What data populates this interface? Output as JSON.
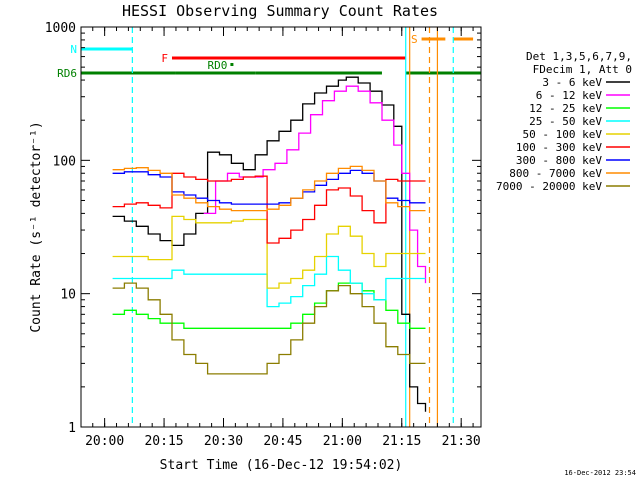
{
  "chart_data": {
    "type": "line",
    "title": "HESSI Observing Summary Count Rates",
    "xlabel": "Start Time (16-Dec-12 19:54:02)",
    "ylabel": "Count Rate (s⁻¹ detector⁻¹)",
    "y_scale": "log",
    "ylim": [
      1,
      1000
    ],
    "xlim": [
      "19:54:02",
      "21:35:00"
    ],
    "x_ticks": [
      "20:00",
      "20:15",
      "20:30",
      "20:45",
      "21:00",
      "21:15",
      "21:30"
    ],
    "y_ticks": [
      "1",
      "10",
      "100",
      "1000"
    ],
    "legend_header": [
      "Det 1,3,5,6,7,9,",
      "FDecim 1, Att 0"
    ],
    "legend_placement": "right",
    "series": [
      {
        "name": "3 - 6 keV",
        "color": "#000000",
        "x": [
          "20:02",
          "20:05",
          "20:08",
          "20:11",
          "20:14",
          "20:17",
          "20:20",
          "20:23",
          "20:26",
          "20:29",
          "20:32",
          "20:35",
          "20:38",
          "20:41",
          "20:44",
          "20:47",
          "20:50",
          "20:53",
          "20:56",
          "20:59",
          "21:01",
          "21:04",
          "21:07",
          "21:10",
          "21:13",
          "21:15",
          "21:17",
          "21:19",
          "21:21"
        ],
        "values": [
          38,
          35,
          32,
          28,
          25,
          23,
          28,
          40,
          115,
          110,
          95,
          85,
          110,
          140,
          165,
          200,
          265,
          320,
          360,
          400,
          420,
          380,
          330,
          260,
          180,
          7,
          2,
          1.5,
          1.3
        ]
      },
      {
        "name": "6 - 12 keV",
        "color": "#ff00ff",
        "x": [
          "20:25",
          "20:28",
          "20:31",
          "20:34",
          "20:37",
          "20:40",
          "20:43",
          "20:46",
          "20:49",
          "20:52",
          "20:55",
          "20:58",
          "21:01",
          "21:04",
          "21:07",
          "21:10",
          "21:13",
          "21:15",
          "21:17",
          "21:19",
          "21:21"
        ],
        "values": [
          40,
          70,
          80,
          75,
          75,
          85,
          95,
          120,
          160,
          220,
          280,
          330,
          360,
          330,
          270,
          200,
          130,
          80,
          30,
          16,
          12
        ]
      },
      {
        "name": "12 - 25 keV",
        "color": "#00ff00",
        "x": [
          "20:02",
          "20:05",
          "20:08",
          "20:11",
          "20:14",
          "20:17",
          "20:20",
          "20:23",
          "20:26",
          "20:29",
          "20:32",
          "20:35",
          "20:38",
          "20:41",
          "20:44",
          "20:47",
          "20:50",
          "20:53",
          "20:56",
          "20:59",
          "21:02",
          "21:05",
          "21:08",
          "21:11",
          "21:14",
          "21:17",
          "21:20",
          "21:21"
        ],
        "values": [
          7,
          7.5,
          7,
          6.5,
          6,
          6,
          5.5,
          5.5,
          5.5,
          5.5,
          5.5,
          5.5,
          5.5,
          5.5,
          5.5,
          6,
          7,
          8.5,
          10.5,
          12,
          12,
          10.5,
          9,
          7.5,
          6,
          5.5,
          5.5,
          5.5
        ]
      },
      {
        "name": "25 - 50 keV",
        "color": "#00ffff",
        "x": [
          "20:02",
          "20:05",
          "20:08",
          "20:11",
          "20:14",
          "20:17",
          "20:20",
          "20:23",
          "20:26",
          "20:29",
          "20:32",
          "20:35",
          "20:38",
          "20:41",
          "20:44",
          "20:47",
          "20:50",
          "20:53",
          "20:56",
          "20:59",
          "21:02",
          "21:05",
          "21:08",
          "21:11",
          "21:14",
          "21:17",
          "21:20",
          "21:21"
        ],
        "values": [
          13,
          13,
          13,
          13,
          13,
          15,
          14,
          14,
          14,
          14,
          14,
          14,
          14,
          8,
          8.5,
          9.5,
          11.5,
          14,
          19,
          15,
          12,
          10,
          9,
          13,
          13,
          13,
          13,
          13
        ]
      },
      {
        "name": "50 - 100 keV",
        "color": "#e6d200",
        "x": [
          "20:02",
          "20:05",
          "20:08",
          "20:11",
          "20:14",
          "20:17",
          "20:20",
          "20:23",
          "20:26",
          "20:29",
          "20:32",
          "20:35",
          "20:38",
          "20:41",
          "20:44",
          "20:47",
          "20:50",
          "20:53",
          "20:56",
          "20:59",
          "21:02",
          "21:05",
          "21:08",
          "21:11",
          "21:14",
          "21:17",
          "21:20",
          "21:21"
        ],
        "values": [
          19,
          19,
          19,
          18,
          18,
          38,
          36,
          34,
          34,
          34,
          35,
          36,
          36,
          11,
          12,
          13,
          15,
          19,
          28,
          32,
          27,
          20,
          16,
          20,
          20,
          20,
          20,
          20
        ]
      },
      {
        "name": "100 - 300 keV",
        "color": "#ff0000",
        "x": [
          "20:02",
          "20:05",
          "20:08",
          "20:11",
          "20:14",
          "20:17",
          "20:20",
          "20:23",
          "20:26",
          "20:29",
          "20:32",
          "20:35",
          "20:38",
          "20:41",
          "20:44",
          "20:47",
          "20:50",
          "20:53",
          "20:56",
          "20:59",
          "21:02",
          "21:05",
          "21:08",
          "21:11",
          "21:14",
          "21:17",
          "21:20",
          "21:21"
        ],
        "values": [
          45,
          47,
          48,
          46,
          44,
          80,
          75,
          72,
          70,
          70,
          72,
          75,
          76,
          24,
          26,
          30,
          36,
          46,
          60,
          62,
          54,
          42,
          34,
          72,
          70,
          70,
          70,
          70
        ]
      },
      {
        "name": "300 - 800 keV",
        "color": "#0000ff",
        "x": [
          "20:02",
          "20:05",
          "20:08",
          "20:11",
          "20:14",
          "20:17",
          "20:20",
          "20:23",
          "20:26",
          "20:29",
          "20:32",
          "20:35",
          "20:38",
          "20:41",
          "20:44",
          "20:47",
          "20:50",
          "20:53",
          "20:56",
          "20:59",
          "21:02",
          "21:05",
          "21:08",
          "21:11",
          "21:14",
          "21:17",
          "21:20",
          "21:21"
        ],
        "values": [
          80,
          82,
          82,
          78,
          75,
          58,
          55,
          52,
          50,
          48,
          47,
          47,
          47,
          47,
          48,
          52,
          58,
          65,
          72,
          80,
          84,
          80,
          70,
          52,
          50,
          48,
          48,
          48
        ]
      },
      {
        "name": "800 - 7000 keV",
        "color": "#ff8c00",
        "x": [
          "20:02",
          "20:05",
          "20:08",
          "20:11",
          "20:14",
          "20:17",
          "20:20",
          "20:23",
          "20:26",
          "20:29",
          "20:32",
          "20:35",
          "20:38",
          "20:41",
          "20:44",
          "20:47",
          "20:50",
          "20:53",
          "20:56",
          "20:59",
          "21:02",
          "21:05",
          "21:08",
          "21:11",
          "21:14",
          "21:17",
          "21:20",
          "21:21"
        ],
        "values": [
          85,
          87,
          88,
          84,
          80,
          55,
          52,
          48,
          45,
          43,
          42,
          42,
          42,
          43,
          46,
          52,
          60,
          70,
          80,
          87,
          90,
          84,
          70,
          48,
          45,
          42,
          42,
          42
        ]
      },
      {
        "name": "7000 - 20000 keV",
        "color": "#8b7d00",
        "x": [
          "20:02",
          "20:05",
          "20:08",
          "20:11",
          "20:14",
          "20:17",
          "20:20",
          "20:23",
          "20:26",
          "20:29",
          "20:32",
          "20:35",
          "20:38",
          "20:41",
          "20:44",
          "20:47",
          "20:50",
          "20:53",
          "20:56",
          "20:59",
          "21:02",
          "21:05",
          "21:08",
          "21:11",
          "21:14",
          "21:17",
          "21:20",
          "21:21"
        ],
        "values": [
          11,
          12,
          11,
          9,
          7,
          4.5,
          3.5,
          3,
          2.5,
          2.5,
          2.5,
          2.5,
          2.5,
          3,
          3.5,
          4.5,
          6,
          8,
          10.5,
          11.5,
          10,
          8,
          6,
          4,
          3.5,
          3,
          3,
          3
        ]
      }
    ],
    "flag_bars": [
      {
        "label": "N",
        "color": "#00ffff",
        "segments": [
          [
            "19:54:02",
            "20:07"
          ]
        ]
      },
      {
        "label": "S",
        "color": "#ff8c00",
        "segments": [
          [
            "21:20",
            "21:26"
          ],
          [
            "21:28",
            "21:33"
          ]
        ]
      },
      {
        "label": "F",
        "color": "#ff0000",
        "segments": [
          [
            "20:17",
            "21:16"
          ]
        ]
      },
      {
        "label": "RD0",
        "color": "#008000",
        "segments": [
          [
            "20:32",
            "20:32"
          ]
        ]
      },
      {
        "label": "RD6",
        "color": "#008000",
        "segments": [
          [
            "19:54:02",
            "20:18"
          ],
          [
            "20:18",
            "20:38"
          ],
          [
            "20:38",
            "21:10"
          ],
          [
            "21:16",
            "21:35"
          ]
        ]
      }
    ],
    "vertical_markers": [
      {
        "at": "20:07",
        "color": "#00ffff",
        "style": "dashed"
      },
      {
        "at": "21:16",
        "color": "#00ffff",
        "style": "solid"
      },
      {
        "at": "21:17",
        "color": "#ff8c00",
        "style": "solid"
      },
      {
        "at": "21:22",
        "color": "#ff8c00",
        "style": "dashed"
      },
      {
        "at": "21:24",
        "color": "#ff8c00",
        "style": "solid"
      },
      {
        "at": "21:28",
        "color": "#00ffff",
        "style": "dashed"
      }
    ],
    "timestamp": "16-Dec-2012 23:54"
  }
}
